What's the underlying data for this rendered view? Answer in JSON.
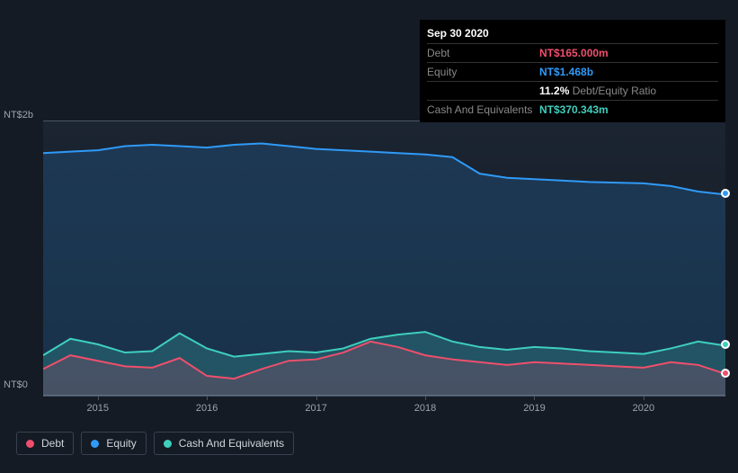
{
  "tooltip": {
    "date": "Sep 30 2020",
    "rows": [
      {
        "label": "Debt",
        "value": "NT$165.000m",
        "color": "#ef4f6c"
      },
      {
        "label": "Equity",
        "value": "NT$1.468b",
        "color": "#2f9af7"
      },
      {
        "label": "",
        "value_pct": "11.2%",
        "value_label": "Debt/Equity Ratio"
      },
      {
        "label": "Cash And Equivalents",
        "value": "NT$370.343m",
        "color": "#3ecfbd"
      }
    ]
  },
  "chart": {
    "type": "area",
    "background": "#151b24",
    "y": {
      "top_label": "NT$2b",
      "bottom_label": "NT$0",
      "max": 2000,
      "min": 0
    },
    "x": {
      "start": 2014.5,
      "end": 2020.75,
      "labels": [
        "2015",
        "2016",
        "2017",
        "2018",
        "2019",
        "2020"
      ]
    },
    "series": {
      "equity": {
        "name": "Equity",
        "color": "#2f9af7",
        "fill_opacity": 0.18,
        "stroke_width": 2,
        "points": [
          [
            2014.5,
            1770
          ],
          [
            2014.75,
            1780
          ],
          [
            2015.0,
            1790
          ],
          [
            2015.25,
            1820
          ],
          [
            2015.5,
            1830
          ],
          [
            2015.75,
            1820
          ],
          [
            2016.0,
            1810
          ],
          [
            2016.25,
            1830
          ],
          [
            2016.5,
            1840
          ],
          [
            2016.75,
            1820
          ],
          [
            2017.0,
            1800
          ],
          [
            2017.25,
            1790
          ],
          [
            2017.5,
            1780
          ],
          [
            2017.75,
            1770
          ],
          [
            2018.0,
            1760
          ],
          [
            2018.25,
            1740
          ],
          [
            2018.5,
            1620
          ],
          [
            2018.75,
            1590
          ],
          [
            2019.0,
            1580
          ],
          [
            2019.25,
            1570
          ],
          [
            2019.5,
            1560
          ],
          [
            2019.75,
            1555
          ],
          [
            2020.0,
            1550
          ],
          [
            2020.25,
            1530
          ],
          [
            2020.5,
            1490
          ],
          [
            2020.75,
            1468
          ]
        ]
      },
      "cash": {
        "name": "Cash And Equivalents",
        "color": "#3ecfbd",
        "fill_opacity": 0.22,
        "stroke_width": 2,
        "points": [
          [
            2014.5,
            300
          ],
          [
            2014.75,
            420
          ],
          [
            2015.0,
            380
          ],
          [
            2015.25,
            320
          ],
          [
            2015.5,
            330
          ],
          [
            2015.75,
            460
          ],
          [
            2016.0,
            350
          ],
          [
            2016.25,
            290
          ],
          [
            2016.5,
            310
          ],
          [
            2016.75,
            330
          ],
          [
            2017.0,
            320
          ],
          [
            2017.25,
            350
          ],
          [
            2017.5,
            420
          ],
          [
            2017.75,
            450
          ],
          [
            2018.0,
            470
          ],
          [
            2018.25,
            400
          ],
          [
            2018.5,
            360
          ],
          [
            2018.75,
            340
          ],
          [
            2019.0,
            360
          ],
          [
            2019.25,
            350
          ],
          [
            2019.5,
            330
          ],
          [
            2019.75,
            320
          ],
          [
            2020.0,
            310
          ],
          [
            2020.25,
            350
          ],
          [
            2020.5,
            400
          ],
          [
            2020.75,
            370
          ]
        ]
      },
      "debt": {
        "name": "Debt",
        "color": "#ef4f6c",
        "fill_opacity": 0.18,
        "stroke_width": 2,
        "points": [
          [
            2014.5,
            200
          ],
          [
            2014.75,
            300
          ],
          [
            2015.0,
            260
          ],
          [
            2015.25,
            220
          ],
          [
            2015.5,
            210
          ],
          [
            2015.75,
            280
          ],
          [
            2016.0,
            150
          ],
          [
            2016.25,
            130
          ],
          [
            2016.5,
            200
          ],
          [
            2016.75,
            260
          ],
          [
            2017.0,
            270
          ],
          [
            2017.25,
            320
          ],
          [
            2017.5,
            400
          ],
          [
            2017.75,
            360
          ],
          [
            2018.0,
            300
          ],
          [
            2018.25,
            270
          ],
          [
            2018.5,
            250
          ],
          [
            2018.75,
            230
          ],
          [
            2019.0,
            250
          ],
          [
            2019.25,
            240
          ],
          [
            2019.5,
            230
          ],
          [
            2019.75,
            220
          ],
          [
            2020.0,
            210
          ],
          [
            2020.25,
            250
          ],
          [
            2020.5,
            230
          ],
          [
            2020.75,
            165
          ]
        ]
      }
    },
    "legend_order": [
      "debt",
      "equity",
      "cash"
    ],
    "end_markers": [
      {
        "series": "equity",
        "color": "#2f9af7"
      },
      {
        "series": "cash",
        "color": "#3ecfbd"
      },
      {
        "series": "debt",
        "color": "#ef4f6c"
      }
    ]
  }
}
